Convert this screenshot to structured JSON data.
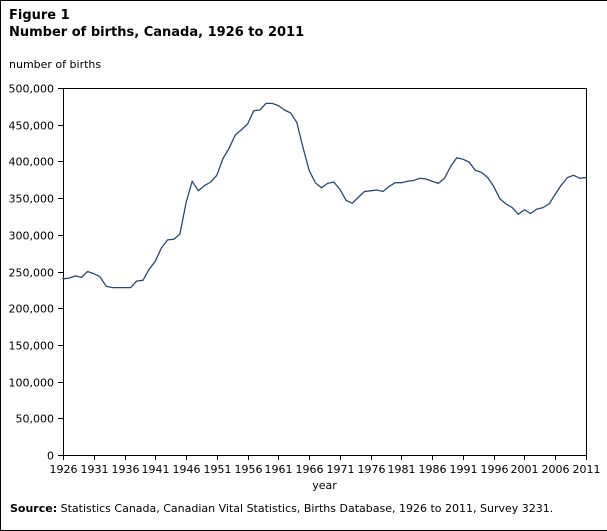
{
  "figure": {
    "label": "Figure 1",
    "title": "Number of births, Canada, 1926 to 2011",
    "y_unit_label": "number of births",
    "x_axis_label": "year",
    "source_label": "Source:",
    "source_text": " Statistics Canada, Canadian Vital Statistics, Births Database, 1926 to 2011, Survey 3231."
  },
  "chart_data": {
    "type": "line",
    "title": "Number of births, Canada, 1926 to 2011",
    "xlabel": "year",
    "ylabel": "number of births",
    "xlim": [
      1926,
      2011
    ],
    "ylim": [
      0,
      500000
    ],
    "x_tick_interval": 5,
    "y_tick_interval": 50000,
    "x_tick_labels": [
      "1926",
      "1931",
      "1936",
      "1941",
      "1946",
      "1951",
      "1956",
      "1961",
      "1966",
      "1971",
      "1976",
      "1981",
      "1986",
      "1991",
      "1996",
      "2001",
      "2006",
      "2011"
    ],
    "y_tick_labels": [
      "0",
      "50,000",
      "100,000",
      "150,000",
      "200,000",
      "250,000",
      "300,000",
      "350,000",
      "400,000",
      "450,000",
      "500,000"
    ],
    "grid": false,
    "legend": "none",
    "line_color": "#2b4970",
    "series": [
      {
        "name": "Number of births",
        "x": [
          1926,
          1927,
          1928,
          1929,
          1930,
          1931,
          1932,
          1933,
          1934,
          1935,
          1936,
          1937,
          1938,
          1939,
          1940,
          1941,
          1942,
          1943,
          1944,
          1945,
          1946,
          1947,
          1948,
          1949,
          1950,
          1951,
          1952,
          1953,
          1954,
          1955,
          1956,
          1957,
          1958,
          1959,
          1960,
          1961,
          1962,
          1963,
          1964,
          1965,
          1966,
          1967,
          1968,
          1969,
          1970,
          1971,
          1972,
          1973,
          1974,
          1975,
          1976,
          1977,
          1978,
          1979,
          1980,
          1981,
          1982,
          1983,
          1984,
          1985,
          1986,
          1987,
          1988,
          1989,
          1990,
          1991,
          1992,
          1993,
          1994,
          1995,
          1996,
          1997,
          1998,
          1999,
          2000,
          2001,
          2002,
          2003,
          2004,
          2005,
          2006,
          2007,
          2008,
          2009,
          2010,
          2011
        ],
        "values": [
          240000,
          241000,
          244000,
          242000,
          250000,
          247000,
          243000,
          230000,
          228000,
          228000,
          228000,
          228000,
          237000,
          238000,
          253000,
          264000,
          282000,
          293000,
          294000,
          301000,
          344000,
          373000,
          360000,
          367000,
          372000,
          381000,
          404000,
          418000,
          436000,
          443000,
          451000,
          469000,
          470000,
          479000,
          479000,
          476000,
          470000,
          466000,
          453000,
          419000,
          388000,
          371000,
          364000,
          370000,
          372000,
          362000,
          347000,
          343000,
          351000,
          359000,
          360000,
          361000,
          359000,
          366000,
          371000,
          371000,
          373000,
          374000,
          377000,
          376000,
          373000,
          370000,
          377000,
          393000,
          405000,
          403000,
          399000,
          388000,
          385000,
          378000,
          366000,
          349000,
          342000,
          337000,
          328000,
          334000,
          329000,
          335000,
          337000,
          342000,
          355000,
          368000,
          378000,
          381000,
          377000,
          378000
        ]
      }
    ]
  }
}
